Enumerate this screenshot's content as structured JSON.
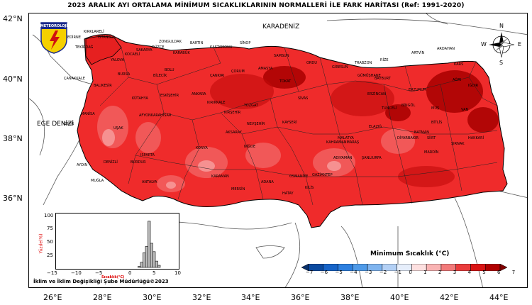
{
  "title": "2023 ARALIK AYI ORTALAMA MİNİMUM SICAKLIKLARININ NORMALLERİ İLE FARK HARİTASI (Ref: 1991-2020)",
  "logo_text": "METEOROLOJİ",
  "sea_labels": {
    "north": "KARADENİZ",
    "west": "EGE DENİZİ"
  },
  "compass": {
    "n": "N",
    "s": "S",
    "e": "E",
    "w": "W"
  },
  "lat_labels": [
    "42°N",
    "40°N",
    "38°N",
    "36°N"
  ],
  "lon_labels": [
    "26°E",
    "28°E",
    "30°E",
    "32°E",
    "34°E",
    "36°E",
    "38°E",
    "40°E",
    "42°E",
    "44°E"
  ],
  "cities": [
    "EDİRNE",
    "KIRKLARELİ",
    "TEKİRDAĞ",
    "İSTANBUL",
    "KOCAELİ",
    "SAKARYA",
    "DÜZCE",
    "ZONGULDAK",
    "BARTIN",
    "KASTAMONU",
    "SİNOP",
    "SAMSUN",
    "ORDU",
    "GİRESUN",
    "TRABZON",
    "RİZE",
    "ARTVİN",
    "ARDAHAN",
    "KARS",
    "IĞDIR",
    "AĞRI",
    "ERZURUM",
    "BAYBURT",
    "GÜMÜŞHANE",
    "ERZİNCAN",
    "TUNCELİ",
    "BİNGÖL",
    "MUŞ",
    "BİTLİS",
    "VAN",
    "HAKKARİ",
    "ŞIRNAK",
    "SİİRT",
    "BATMAN",
    "MARDİN",
    "DİYARBAKIR",
    "ŞANLIURFA",
    "ADIYAMAN",
    "MALATYA",
    "ELAZIĞ",
    "SİVAS",
    "TOKAT",
    "AMASYA",
    "ÇORUM",
    "ÇANKIRI",
    "KARABÜK",
    "BOLU",
    "ANKARA",
    "KIRIKKALE",
    "KIRŞEHİR",
    "YOZGAT",
    "KAYSERİ",
    "NEVŞEHİR",
    "AKSARAY",
    "NİĞDE",
    "KONYA",
    "KARAMAN",
    "MERSİN",
    "ADANA",
    "OSMANİYE",
    "HATAY",
    "GAZİANTEP",
    "KİLİS",
    "KAHRAMANMARAŞ",
    "ANTALYA",
    "ISPARTA",
    "BURDUR",
    "DENİZLİ",
    "AYDIN",
    "MUĞLA",
    "İZMİR",
    "MANİSA",
    "UŞAK",
    "AFYONKARAHİSAR",
    "KÜTAHYA",
    "ESKİŞEHİR",
    "BİLECİK",
    "BURSA",
    "BALIKESİR",
    "ÇANAKKALE",
    "YALOVA"
  ],
  "histogram": {
    "y_label": "Yüzde(%)",
    "x_label": "Sıcaklık(°C)",
    "y_ticks": [
      "100",
      "75",
      "50",
      "25"
    ],
    "x_ticks": [
      "−15",
      "−10",
      "−5",
      "0",
      "5",
      "10"
    ],
    "xlim": [
      -15,
      10
    ],
    "ylim": [
      0,
      100
    ],
    "bins": [
      1.5,
      2,
      2.5,
      3,
      3.5,
      4,
      4.5,
      5,
      5.5
    ],
    "values": [
      2,
      10,
      28,
      40,
      88,
      46,
      30,
      12,
      4
    ]
  },
  "credit": "İklim ve İklim Değişikliği Şube Müdürlüğü©2023",
  "legend": {
    "title": "Minimum Sıcaklık (°C)",
    "ticks": [
      "−7",
      "−6",
      "−5",
      "−4",
      "−3",
      "−2",
      "−1",
      "0",
      "1",
      "2",
      "3",
      "4",
      "5",
      "6",
      "7"
    ],
    "colors": [
      "#08306b",
      "#0b4aa0",
      "#1764c8",
      "#2d80e0",
      "#4f9ae8",
      "#7fb4ef",
      "#b3d0f5",
      "#e6eefb",
      "#fde0e0",
      "#f9b3b3",
      "#f27a7a",
      "#ea3c3c",
      "#d91414",
      "#b00000",
      "#800000"
    ]
  }
}
